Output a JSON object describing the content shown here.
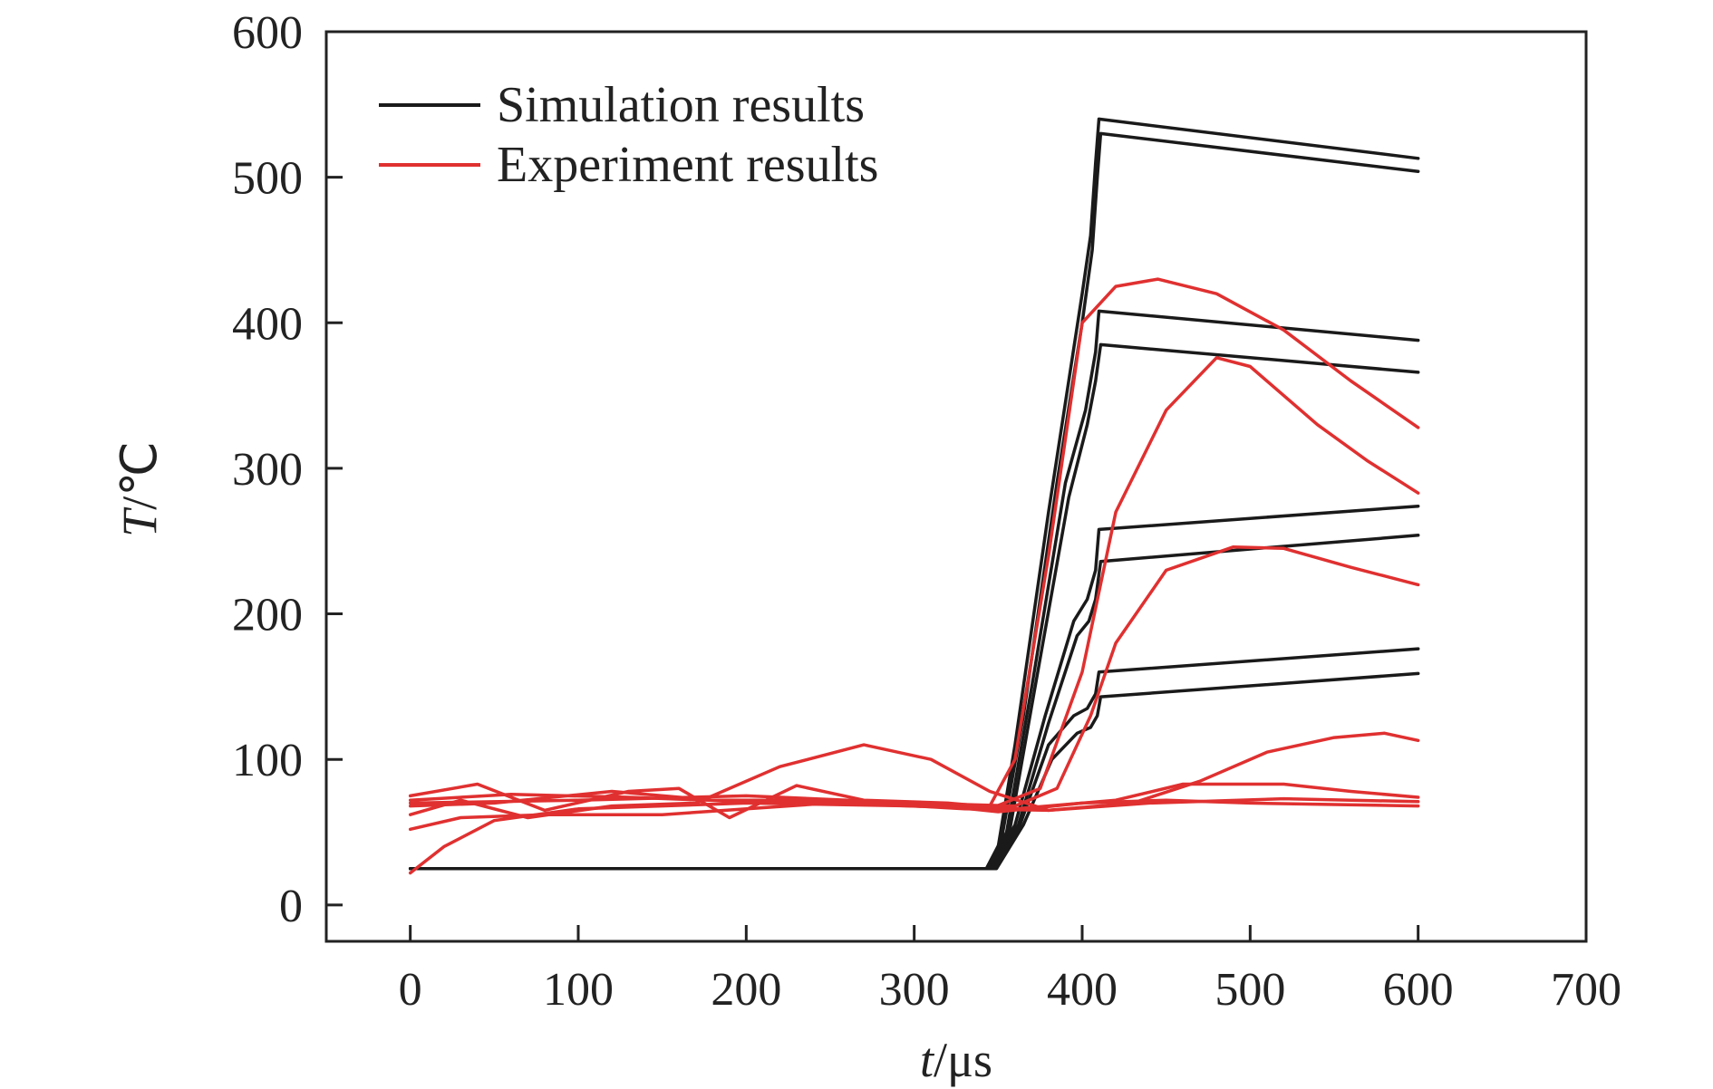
{
  "chart_data": {
    "type": "line",
    "title": "",
    "xlabel": {
      "var": "t",
      "unit": "/μs"
    },
    "ylabel": {
      "var": "T",
      "unit": "/℃"
    },
    "xlim": [
      -50,
      700
    ],
    "ylim": [
      -25,
      600
    ],
    "x_ticks": [
      0,
      100,
      200,
      300,
      400,
      500,
      600,
      700
    ],
    "y_ticks": [
      0,
      100,
      200,
      300,
      400,
      500,
      600
    ],
    "grid": false,
    "legend": {
      "placement": "top-left",
      "entries": [
        {
          "label": "Simulation results",
          "color": "#1a1a1a"
        },
        {
          "label": "Experiment results",
          "color": "#e03030"
        }
      ]
    },
    "series": [
      {
        "group": "Simulation results",
        "color": "#1a1a1a",
        "points": [
          [
            0,
            25
          ],
          [
            343,
            25
          ],
          [
            350,
            40
          ],
          [
            360,
            110
          ],
          [
            380,
            270
          ],
          [
            400,
            420
          ],
          [
            405,
            460
          ],
          [
            408,
            510
          ],
          [
            410,
            540
          ],
          [
            600,
            513
          ]
        ]
      },
      {
        "group": "Simulation results",
        "color": "#1a1a1a",
        "points": [
          [
            0,
            25
          ],
          [
            343,
            25
          ],
          [
            352,
            45
          ],
          [
            365,
            130
          ],
          [
            385,
            290
          ],
          [
            400,
            400
          ],
          [
            406,
            450
          ],
          [
            409,
            500
          ],
          [
            411,
            530
          ],
          [
            600,
            504
          ]
        ]
      },
      {
        "group": "Simulation results",
        "color": "#1a1a1a",
        "points": [
          [
            0,
            25
          ],
          [
            344,
            25
          ],
          [
            355,
            50
          ],
          [
            370,
            150
          ],
          [
            390,
            290
          ],
          [
            402,
            340
          ],
          [
            408,
            380
          ],
          [
            410,
            408
          ],
          [
            600,
            388
          ]
        ]
      },
      {
        "group": "Simulation results",
        "color": "#1a1a1a",
        "points": [
          [
            0,
            25
          ],
          [
            345,
            25
          ],
          [
            357,
            52
          ],
          [
            372,
            150
          ],
          [
            392,
            280
          ],
          [
            403,
            330
          ],
          [
            408,
            360
          ],
          [
            411,
            385
          ],
          [
            600,
            366
          ]
        ]
      },
      {
        "group": "Simulation results",
        "color": "#1a1a1a",
        "points": [
          [
            0,
            25
          ],
          [
            346,
            25
          ],
          [
            360,
            55
          ],
          [
            378,
            130
          ],
          [
            395,
            195
          ],
          [
            403,
            210
          ],
          [
            408,
            230
          ],
          [
            410,
            258
          ],
          [
            600,
            274
          ]
        ]
      },
      {
        "group": "Simulation results",
        "color": "#1a1a1a",
        "points": [
          [
            0,
            25
          ],
          [
            347,
            25
          ],
          [
            362,
            55
          ],
          [
            380,
            125
          ],
          [
            397,
            185
          ],
          [
            404,
            195
          ],
          [
            408,
            210
          ],
          [
            411,
            236
          ],
          [
            600,
            254
          ]
        ]
      },
      {
        "group": "Simulation results",
        "color": "#1a1a1a",
        "points": [
          [
            0,
            25
          ],
          [
            348,
            25
          ],
          [
            363,
            55
          ],
          [
            380,
            110
          ],
          [
            395,
            130
          ],
          [
            403,
            135
          ],
          [
            408,
            145
          ],
          [
            410,
            160
          ],
          [
            600,
            176
          ]
        ]
      },
      {
        "group": "Simulation results",
        "color": "#1a1a1a",
        "points": [
          [
            0,
            25
          ],
          [
            349,
            25
          ],
          [
            365,
            55
          ],
          [
            382,
            100
          ],
          [
            397,
            118
          ],
          [
            405,
            122
          ],
          [
            409,
            130
          ],
          [
            411,
            143
          ],
          [
            600,
            159
          ]
        ]
      },
      {
        "group": "Experiment results",
        "color": "#e03030",
        "points": [
          [
            0,
            22
          ],
          [
            20,
            40
          ],
          [
            50,
            58
          ],
          [
            100,
            66
          ],
          [
            200,
            70
          ],
          [
            300,
            68
          ],
          [
            345,
            68
          ],
          [
            360,
            100
          ],
          [
            380,
            240
          ],
          [
            400,
            400
          ],
          [
            420,
            425
          ],
          [
            445,
            430
          ],
          [
            480,
            420
          ],
          [
            520,
            395
          ],
          [
            560,
            360
          ],
          [
            600,
            328
          ]
        ]
      },
      {
        "group": "Experiment results",
        "color": "#e03030",
        "points": [
          [
            0,
            52
          ],
          [
            30,
            60
          ],
          [
            80,
            62
          ],
          [
            150,
            62
          ],
          [
            250,
            70
          ],
          [
            345,
            66
          ],
          [
            375,
            80
          ],
          [
            400,
            160
          ],
          [
            420,
            270
          ],
          [
            450,
            340
          ],
          [
            480,
            376
          ],
          [
            500,
            370
          ],
          [
            540,
            330
          ],
          [
            570,
            305
          ],
          [
            600,
            283
          ]
        ]
      },
      {
        "group": "Experiment results",
        "color": "#e03030",
        "points": [
          [
            0,
            70
          ],
          [
            100,
            72
          ],
          [
            200,
            75
          ],
          [
            300,
            70
          ],
          [
            360,
            68
          ],
          [
            385,
            80
          ],
          [
            405,
            130
          ],
          [
            420,
            180
          ],
          [
            450,
            230
          ],
          [
            490,
            246
          ],
          [
            520,
            245
          ],
          [
            560,
            232
          ],
          [
            600,
            220
          ]
        ]
      },
      {
        "group": "Experiment results",
        "color": "#e03030",
        "points": [
          [
            0,
            62
          ],
          [
            30,
            72
          ],
          [
            70,
            60
          ],
          [
            120,
            68
          ],
          [
            170,
            70
          ],
          [
            220,
            95
          ],
          [
            270,
            110
          ],
          [
            310,
            100
          ],
          [
            345,
            78
          ],
          [
            380,
            65
          ],
          [
            430,
            70
          ],
          [
            470,
            85
          ],
          [
            510,
            105
          ],
          [
            550,
            115
          ],
          [
            580,
            118
          ],
          [
            600,
            113
          ]
        ]
      },
      {
        "group": "Experiment results",
        "color": "#e03030",
        "points": [
          [
            0,
            75
          ],
          [
            40,
            83
          ],
          [
            80,
            65
          ],
          [
            130,
            78
          ],
          [
            160,
            80
          ],
          [
            190,
            60
          ],
          [
            230,
            82
          ],
          [
            270,
            72
          ],
          [
            320,
            70
          ],
          [
            360,
            66
          ],
          [
            420,
            72
          ],
          [
            460,
            83
          ],
          [
            520,
            83
          ],
          [
            560,
            78
          ],
          [
            600,
            74
          ]
        ]
      },
      {
        "group": "Experiment results",
        "color": "#e03030",
        "points": [
          [
            0,
            68
          ],
          [
            50,
            70
          ],
          [
            120,
            78
          ],
          [
            180,
            72
          ],
          [
            250,
            72
          ],
          [
            300,
            70
          ],
          [
            350,
            64
          ],
          [
            400,
            70
          ],
          [
            450,
            72
          ],
          [
            500,
            70
          ],
          [
            550,
            69
          ],
          [
            600,
            68
          ]
        ]
      },
      {
        "group": "Experiment results",
        "color": "#e03030",
        "points": [
          [
            0,
            72
          ],
          [
            60,
            76
          ],
          [
            130,
            74
          ],
          [
            200,
            71
          ],
          [
            270,
            70
          ],
          [
            330,
            66
          ],
          [
            380,
            65
          ],
          [
            440,
            70
          ],
          [
            520,
            73
          ],
          [
            600,
            71
          ]
        ]
      }
    ]
  }
}
